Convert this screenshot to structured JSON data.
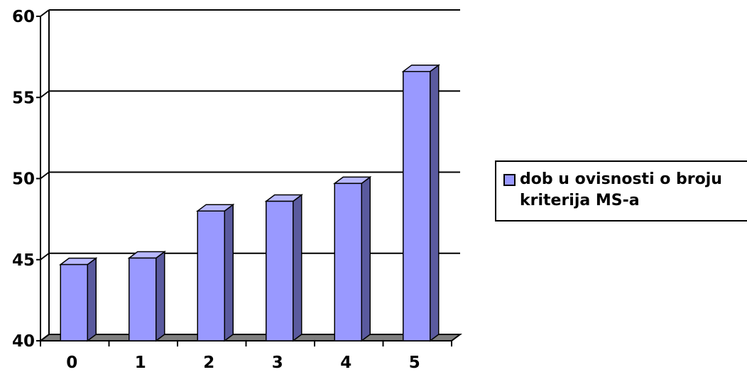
{
  "chart_data": {
    "type": "bar",
    "categories": [
      "0",
      "1",
      "2",
      "3",
      "4",
      "5"
    ],
    "series": [
      {
        "name": "dob u ovisnosti o broju kriterija MS-a",
        "values": [
          44.7,
          45.1,
          48.0,
          48.6,
          49.7,
          56.6
        ]
      }
    ],
    "ylim": [
      40,
      60
    ],
    "yticks": [
      "40",
      "45",
      "50",
      "55",
      "60"
    ],
    "grid": true,
    "three_d": true,
    "legend_position": "right"
  },
  "colors": {
    "bar_front": "#9999ff",
    "bar_side": "#5a5a9e",
    "bar_top": "#b8b8ff",
    "floor": "#7f7f7f",
    "gridline": "#000000"
  }
}
